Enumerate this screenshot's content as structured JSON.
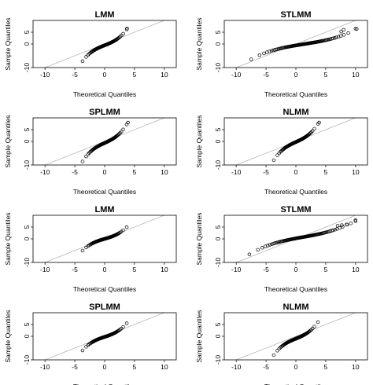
{
  "colors": {
    "points": "#000000",
    "refline": "#b5b5b5",
    "axis": "#000000",
    "background": "#ffffff"
  },
  "chart_data": [
    {
      "type": "scatter",
      "title": "LMM",
      "xlabel": "Theoretical Quantiles",
      "ylabel": "Sample Quantiles",
      "xlim": [
        -12,
        12
      ],
      "ylim": [
        -10,
        10
      ],
      "xticks": [
        "-10",
        "-5",
        "0",
        "5",
        "10"
      ],
      "yticks": [
        "-10",
        "0",
        "5"
      ],
      "theoretical_range": [
        -3.7,
        3.7
      ],
      "sample_range": [
        -7.3,
        6.2
      ],
      "grid": false,
      "reference_line": "y = x",
      "outliers": [
        [
          3.75,
          6.6
        ]
      ]
    },
    {
      "type": "scatter",
      "title": "STLMM",
      "xlabel": "Theoretical Quantiles",
      "ylabel": "Sample Quantiles",
      "xlim": [
        -12,
        12
      ],
      "ylim": [
        -10,
        10
      ],
      "xticks": [
        "-10",
        "-5",
        "0",
        "5",
        "10"
      ],
      "yticks": [
        "-10",
        "0",
        "5"
      ],
      "theoretical_range": [
        -7.5,
        10.2
      ],
      "sample_range": [
        -6.5,
        6.4
      ],
      "grid": false,
      "reference_line": "y = x",
      "outliers": [
        [
          7.6,
          5.3
        ],
        [
          8.0,
          6.0
        ],
        [
          10.0,
          6.5
        ]
      ]
    },
    {
      "type": "scatter",
      "title": "SPLMM",
      "xlabel": "Theoretical Quantiles",
      "ylabel": "Sample Quantiles",
      "xlim": [
        -12,
        12
      ],
      "ylim": [
        -10,
        10
      ],
      "xticks": [
        "-10",
        "-5",
        "0",
        "5",
        "10"
      ],
      "yticks": [
        "-10",
        "0",
        "5"
      ],
      "theoretical_range": [
        -3.7,
        3.7
      ],
      "sample_range": [
        -8.5,
        7.2
      ],
      "grid": false,
      "reference_line": "y = x",
      "outliers": [
        [
          3.9,
          8.0
        ]
      ]
    },
    {
      "type": "scatter",
      "title": "NLMM",
      "xlabel": "Theoretical Quantiles",
      "ylabel": "Sample Quantiles",
      "xlim": [
        -12,
        12
      ],
      "ylim": [
        -10,
        10
      ],
      "xticks": [
        "-10",
        "-5",
        "0",
        "5",
        "10"
      ],
      "yticks": [
        "-10",
        "0",
        "5"
      ],
      "theoretical_range": [
        -3.7,
        3.7
      ],
      "sample_range": [
        -8.0,
        7.5
      ],
      "grid": false,
      "reference_line": "y = x",
      "outliers": [
        [
          3.9,
          8.0
        ]
      ]
    },
    {
      "type": "scatter",
      "title": "LMM",
      "xlabel": "Theoretical Quantiles",
      "ylabel": "Sample Quantiles",
      "xlim": [
        -12,
        12
      ],
      "ylim": [
        -10,
        10
      ],
      "xticks": [
        "-10",
        "-5",
        "0",
        "5",
        "10"
      ],
      "yticks": [
        "-10",
        "0",
        "5"
      ],
      "theoretical_range": [
        -3.7,
        3.7
      ],
      "sample_range": [
        -5.0,
        5.0
      ],
      "grid": false,
      "reference_line": "y = x",
      "outliers": []
    },
    {
      "type": "scatter",
      "title": "STLMM",
      "xlabel": "Theoretical Quantiles",
      "ylabel": "Sample Quantiles",
      "xlim": [
        -12,
        12
      ],
      "ylim": [
        -10,
        10
      ],
      "xticks": [
        "-10",
        "-5",
        "0",
        "5",
        "10"
      ],
      "yticks": [
        "-10",
        "0",
        "5"
      ],
      "theoretical_range": [
        -7.8,
        10.0
      ],
      "sample_range": [
        -6.6,
        8.0
      ],
      "grid": false,
      "reference_line": "y = x",
      "outliers": [
        [
          7.0,
          5.6
        ],
        [
          7.7,
          5.8
        ],
        [
          8.5,
          6.1
        ],
        [
          9.2,
          6.6
        ],
        [
          10.0,
          7.5
        ]
      ]
    },
    {
      "type": "scatter",
      "title": "SPLMM",
      "xlabel": "Theoretical Quantiles",
      "ylabel": "Sample Quantiles",
      "xlim": [
        -12,
        12
      ],
      "ylim": [
        -10,
        10
      ],
      "xticks": [
        "-10",
        "-5",
        "0",
        "5",
        "10"
      ],
      "yticks": [
        "-10",
        "0",
        "5"
      ],
      "theoretical_range": [
        -3.7,
        3.7
      ],
      "sample_range": [
        -6.0,
        5.5
      ],
      "grid": false,
      "reference_line": "y = x",
      "outliers": []
    },
    {
      "type": "scatter",
      "title": "NLMM",
      "xlabel": "Theoretical Quantiles",
      "ylabel": "Sample Quantiles",
      "xlim": [
        -12,
        12
      ],
      "ylim": [
        -10,
        10
      ],
      "xticks": [
        "-10",
        "-5",
        "0",
        "5",
        "10"
      ],
      "yticks": [
        "-10",
        "0",
        "5"
      ],
      "theoretical_range": [
        -3.7,
        3.7
      ],
      "sample_range": [
        -8.0,
        6.0
      ],
      "grid": false,
      "reference_line": "y = x",
      "outliers": []
    }
  ]
}
